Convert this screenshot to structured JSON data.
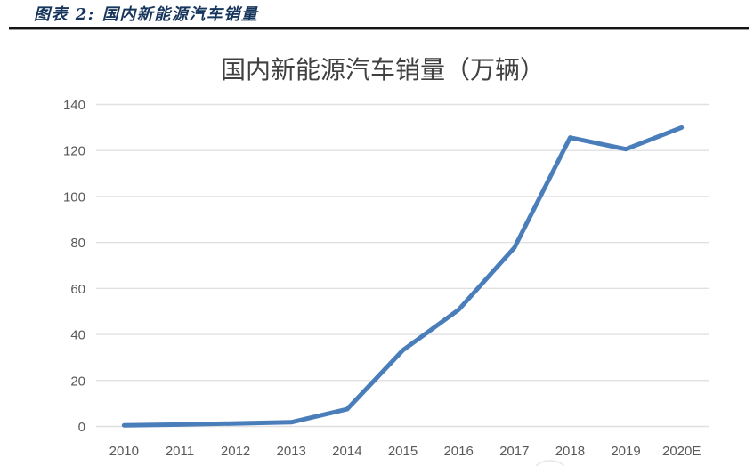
{
  "figure_header": {
    "label": "图表 2: 国内新能源汽车销量"
  },
  "chart": {
    "title": "国内新能源汽车销量（万辆）"
  },
  "chart_data": {
    "type": "line",
    "title": "国内新能源汽车销量（万辆）",
    "categories": [
      "2010",
      "2011",
      "2012",
      "2013",
      "2014",
      "2015",
      "2016",
      "2017",
      "2018",
      "2019",
      "2020E"
    ],
    "series": [
      {
        "name": "国内新能源汽车销量",
        "values": [
          0.5,
          0.8,
          1.3,
          1.8,
          7.5,
          33.1,
          50.7,
          77.7,
          125.6,
          120.6,
          130
        ]
      }
    ],
    "xlabel": "",
    "ylabel": "",
    "ylim": [
      0,
      140
    ],
    "ytick_step": 20,
    "yticks": [
      0,
      20,
      40,
      60,
      80,
      100,
      120,
      140
    ],
    "grid": true,
    "legend_position": "none",
    "colors": {
      "line": "#4a7ebb",
      "grid": "#e0e0e0",
      "tick_labels": "#595959",
      "title": "#404040",
      "header": "#17365d",
      "divider": "#141414",
      "background": "#ffffff"
    }
  }
}
